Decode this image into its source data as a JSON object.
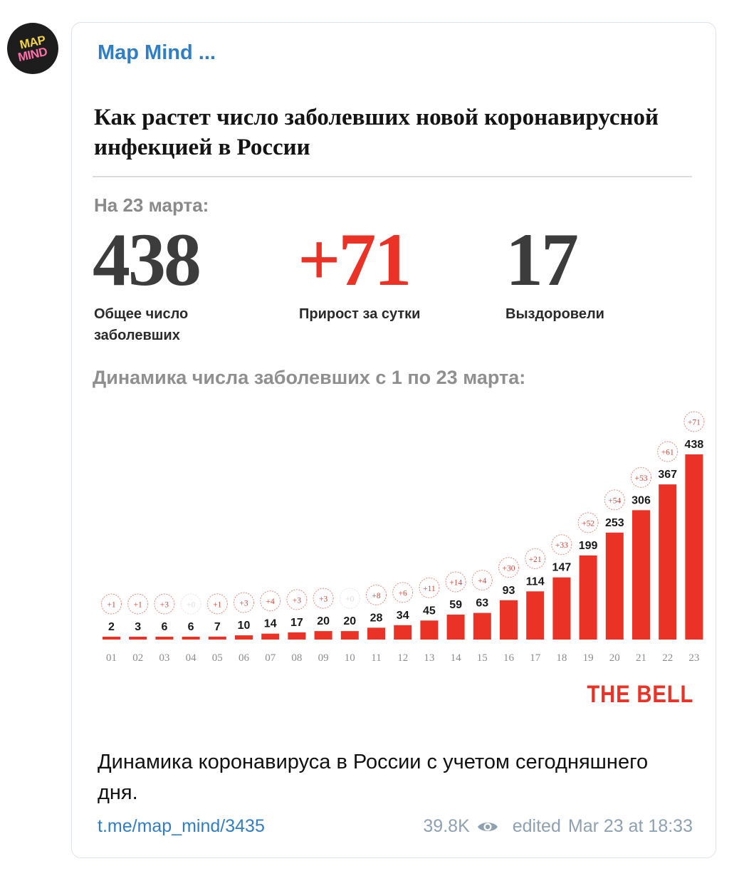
{
  "channel": {
    "avatar_text": [
      "MAP",
      "MIND"
    ],
    "name": "Map Mind ..."
  },
  "infographic": {
    "title": "Как растет число заболевших новой коронавирусной инфекцией в России",
    "date_label": "На 23 марта:",
    "stats": [
      {
        "value": "438",
        "label_lines": [
          "Общее число",
          "заболевших"
        ]
      },
      {
        "value": "+71",
        "label_lines": [
          "Прирост за сутки"
        ]
      },
      {
        "value": "17",
        "label_lines": [
          "Выздоровели"
        ]
      }
    ],
    "chart_heading": "Динамика числа  заболевших с 1 по 23 марта:",
    "brand": "THE BELL"
  },
  "chart_data": {
    "type": "bar",
    "title": "Динамика числа  заболевших с 1 по 23 марта:",
    "categories": [
      "01",
      "02",
      "03",
      "04",
      "05",
      "06",
      "07",
      "08",
      "09",
      "10",
      "11",
      "12",
      "13",
      "14",
      "15",
      "16",
      "17",
      "18",
      "19",
      "20",
      "21",
      "22",
      "23"
    ],
    "values": [
      2,
      3,
      6,
      6,
      7,
      10,
      14,
      17,
      20,
      20,
      28,
      34,
      45,
      59,
      63,
      93,
      114,
      147,
      199,
      253,
      306,
      367,
      438
    ],
    "daily_increase": [
      "+1",
      "+1",
      "+3",
      "+0",
      "+1",
      "+3",
      "+4",
      "+3",
      "+3",
      "+0",
      "+8",
      "+6",
      "+11",
      "+14",
      "+4",
      "+30",
      "+21",
      "+33",
      "+52",
      "+54",
      "+53",
      "+61",
      "+71"
    ],
    "increase_shown": [
      true,
      true,
      true,
      false,
      true,
      true,
      true,
      true,
      true,
      false,
      true,
      true,
      true,
      true,
      true,
      true,
      true,
      true,
      true,
      true,
      true,
      true,
      true
    ],
    "ylim": [
      0,
      438
    ],
    "bar_color": "#ea3326",
    "grid": false
  },
  "message": {
    "caption": "Динамика коронавируса в России с учетом сегодняшнего дня.",
    "link": "t.me/map_mind/3435",
    "views": "39.8K",
    "edited_label": "edited",
    "timestamp": "Mar 23 at 18:33"
  },
  "colors": {
    "link": "#2f7ec6",
    "meta": "#8ea1b3",
    "accent_red": "#ea3326"
  }
}
